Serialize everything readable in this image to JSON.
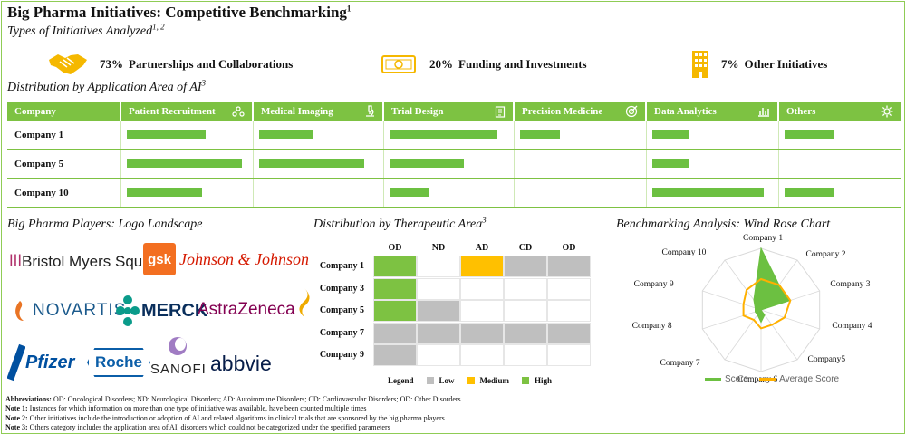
{
  "title": "Big Pharma Initiatives: Competitive Benchmarking",
  "title_sup": "1",
  "subtitle": "Types of Initiatives Analyzed",
  "subtitle_sup": "1, 2",
  "stats": [
    {
      "pct": "73%",
      "label": "Partnerships and Collaborations",
      "icon": "handshake-icon"
    },
    {
      "pct": "20%",
      "label": "Funding and Investments",
      "icon": "money-icon"
    },
    {
      "pct": "7%",
      "label": "Other Initiatives",
      "icon": "building-icon"
    }
  ],
  "ai_section": {
    "title": "Distribution by Application Area of AI",
    "sup": "3"
  },
  "ai_table": {
    "columns": [
      "Company",
      "Patient Recruitment",
      "Medical Imaging",
      "Trial Design",
      "Precision Medicine",
      "Data Analytics",
      "Others"
    ],
    "column_icons": [
      "",
      "network-icon",
      "microscope-icon",
      "clipboard-icon",
      "target-icon",
      "bar-chart-icon",
      "gear-icon"
    ],
    "rows": [
      {
        "company": "Company 1",
        "values": [
          0.65,
          0.45,
          0.9,
          0.33,
          0.3,
          0.45
        ]
      },
      {
        "company": "Company 5",
        "values": [
          0.95,
          0.88,
          0.62,
          0,
          0.3,
          0
        ]
      },
      {
        "company": "Company 10",
        "values": [
          0.62,
          0,
          0.33,
          0,
          0.92,
          0.45
        ]
      }
    ]
  },
  "logos": {
    "title": "Big Pharma Players: Logo Landscape",
    "items": [
      "Bristol Myers Squibb",
      "gsk",
      "Johnson & Johnson",
      "NOVARTIS",
      "MERCK",
      "AstraZeneca",
      "Pfizer",
      "Roche",
      "SANOFI",
      "abbvie"
    ]
  },
  "heatmap": {
    "title": "Distribution by Therapeutic Area",
    "sup": "3",
    "columns": [
      "OD",
      "ND",
      "AD",
      "CD",
      "OD"
    ],
    "rows": [
      {
        "company": "Company 1",
        "levels": [
          "High",
          "",
          "Medium",
          "Low",
          "Low"
        ]
      },
      {
        "company": "Company 3",
        "levels": [
          "High",
          "",
          "",
          "",
          ""
        ]
      },
      {
        "company": "Company 5",
        "levels": [
          "High",
          "Low",
          "",
          "",
          ""
        ]
      },
      {
        "company": "Company 7",
        "levels": [
          "Low",
          "Low",
          "Low",
          "Low",
          "Low"
        ]
      },
      {
        "company": "Company 9",
        "levels": [
          "Low",
          "",
          "",
          "",
          ""
        ]
      }
    ],
    "legend_title": "Legend",
    "legend": [
      {
        "label": "Low",
        "color": "#bfbfbf"
      },
      {
        "label": "Medium",
        "color": "#ffc000"
      },
      {
        "label": "High",
        "color": "#7dc242"
      }
    ]
  },
  "wind_rose": {
    "title": "Benchmarking Analysis: Wind Rose Chart",
    "chart_data": {
      "type": "radar",
      "categories": [
        "Company 1",
        "Company 2",
        "Company 3",
        "Company 4",
        "Company5",
        "Company 6",
        "Company 7",
        "Company 8",
        "Company 9",
        "Company 10"
      ],
      "series": [
        {
          "name": "Score",
          "values": [
            10,
            5,
            5,
            0,
            1,
            2,
            1,
            1,
            1,
            2
          ]
        },
        {
          "name": "Average Score",
          "values": [
            5,
            5,
            5,
            4,
            3,
            3,
            2,
            3,
            3,
            4
          ]
        }
      ],
      "rmax": 10,
      "colors": {
        "Score": "#6cc041",
        "Average Score": "#ffb000"
      }
    },
    "legend": [
      "Score",
      "Average Score"
    ]
  },
  "notes": [
    {
      "label": "Abbreviations:",
      "text": " OD: Oncological Disorders; ND: Neurological Disorders; AD: Autoimmune Disorders; CD: Cardiovascular Disorders; OD: Other Disorders"
    },
    {
      "label": "Note 1:",
      "text": " Instances for which information on more than one type of initiative was available, have been counted multiple times"
    },
    {
      "label": "Note 2:",
      "text": " Other initiatives include the introduction or adoption of AI and related algorithms in clinical trials that are sponsored by the big pharma players"
    },
    {
      "label": "Note 3:",
      "text": " Others category includes the application area of AI, disorders which could not be categorized under the specified parameters"
    }
  ]
}
